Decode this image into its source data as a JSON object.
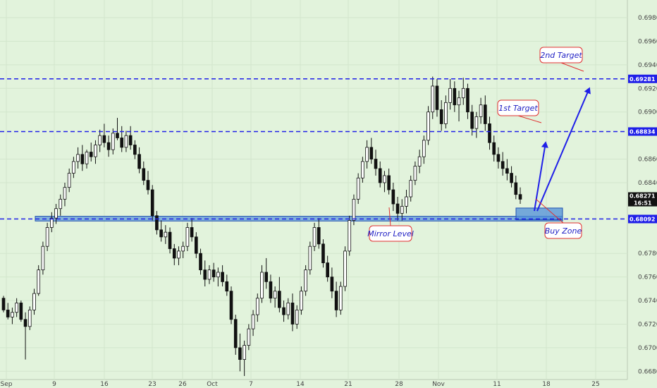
{
  "chart_data": {
    "type": "candlestick",
    "y_axis": {
      "position": "right",
      "ylim": [
        0.6673,
        0.6995
      ],
      "ticks": [
        "0.69800",
        "0.69600",
        "0.69400",
        "0.69200",
        "0.69000",
        "0.68600",
        "0.68400",
        "0.67800",
        "0.67600",
        "0.67400",
        "0.67200",
        "0.67000",
        "0.66800"
      ]
    },
    "x_axis": {
      "ticks": [
        "Sep",
        "9",
        "16",
        "23",
        "26",
        "Oct",
        "7",
        "14",
        "21",
        "28",
        "Nov",
        "11",
        "18",
        "25"
      ]
    },
    "levels": [
      {
        "value": 0.69281,
        "label": "0.69281",
        "color": "#1f1fe8",
        "style": "dashed"
      },
      {
        "value": 0.68834,
        "label": "0.68834",
        "color": "#1f1fe8",
        "style": "dashed"
      },
      {
        "value": 0.68092,
        "label": "0.68092",
        "color": "#1f1fe8",
        "style": "dashed"
      }
    ],
    "last_price": {
      "value": "0.68271",
      "countdown": "16:51"
    },
    "zones": {
      "mirror_level": {
        "y_from": 0.68075,
        "y_to": 0.68115,
        "color": "#4f8fd8"
      },
      "buy_zone": {
        "y_from": 0.68085,
        "y_to": 0.68185,
        "color": "#4f8fd8"
      }
    },
    "annotations": [
      {
        "id": "second-target",
        "text": "2nd Target"
      },
      {
        "id": "first-target",
        "text": "1st Target"
      },
      {
        "id": "mirror-level",
        "text": "Mirror Level"
      },
      {
        "id": "buy-zone",
        "text": "Buy Zone"
      }
    ],
    "candles": [
      [
        0.6742,
        0.6744,
        0.673,
        0.6732
      ],
      [
        0.6732,
        0.6738,
        0.6724,
        0.6726
      ],
      [
        0.6726,
        0.6734,
        0.672,
        0.673
      ],
      [
        0.673,
        0.6742,
        0.6726,
        0.6738
      ],
      [
        0.6738,
        0.674,
        0.6722,
        0.6724
      ],
      [
        0.6724,
        0.673,
        0.669,
        0.6718
      ],
      [
        0.6718,
        0.6735,
        0.6715,
        0.6732
      ],
      [
        0.6732,
        0.675,
        0.6728,
        0.6746
      ],
      [
        0.6746,
        0.677,
        0.6744,
        0.6766
      ],
      [
        0.6766,
        0.679,
        0.6762,
        0.6786
      ],
      [
        0.6786,
        0.6806,
        0.6782,
        0.6802
      ],
      [
        0.6802,
        0.6815,
        0.6798,
        0.681
      ],
      [
        0.681,
        0.6822,
        0.6805,
        0.6818
      ],
      [
        0.6818,
        0.683,
        0.6812,
        0.6826
      ],
      [
        0.6826,
        0.684,
        0.682,
        0.6836
      ],
      [
        0.6836,
        0.6852,
        0.6832,
        0.6848
      ],
      [
        0.6848,
        0.6862,
        0.6844,
        0.6858
      ],
      [
        0.6858,
        0.687,
        0.6852,
        0.6864
      ],
      [
        0.6864,
        0.6872,
        0.685,
        0.6856
      ],
      [
        0.6856,
        0.6868,
        0.6852,
        0.6866
      ],
      [
        0.6866,
        0.6874,
        0.6858,
        0.6862
      ],
      [
        0.6862,
        0.6876,
        0.6856,
        0.6872
      ],
      [
        0.6872,
        0.6885,
        0.6866,
        0.688
      ],
      [
        0.688,
        0.689,
        0.687,
        0.6874
      ],
      [
        0.6874,
        0.688,
        0.6862,
        0.6868
      ],
      [
        0.6868,
        0.6886,
        0.6864,
        0.6882
      ],
      [
        0.6882,
        0.6895,
        0.6876,
        0.6878
      ],
      [
        0.6878,
        0.6888,
        0.6866,
        0.687
      ],
      [
        0.687,
        0.6884,
        0.6866,
        0.688
      ],
      [
        0.688,
        0.6888,
        0.6868,
        0.6872
      ],
      [
        0.6872,
        0.6876,
        0.686,
        0.6864
      ],
      [
        0.6864,
        0.687,
        0.6848,
        0.6852
      ],
      [
        0.6852,
        0.6858,
        0.6838,
        0.6842
      ],
      [
        0.6842,
        0.685,
        0.683,
        0.6834
      ],
      [
        0.6834,
        0.6838,
        0.6808,
        0.6812
      ],
      [
        0.6812,
        0.6816,
        0.6796,
        0.68
      ],
      [
        0.68,
        0.6808,
        0.679,
        0.6794
      ],
      [
        0.6794,
        0.6804,
        0.6788,
        0.6798
      ],
      [
        0.6798,
        0.6802,
        0.678,
        0.6784
      ],
      [
        0.6784,
        0.6788,
        0.677,
        0.6776
      ],
      [
        0.6776,
        0.6786,
        0.677,
        0.6782
      ],
      [
        0.6782,
        0.679,
        0.6776,
        0.6786
      ],
      [
        0.6786,
        0.6806,
        0.6782,
        0.6802
      ],
      [
        0.6802,
        0.681,
        0.679,
        0.6794
      ],
      [
        0.6794,
        0.6798,
        0.6776,
        0.678
      ],
      [
        0.678,
        0.6784,
        0.6762,
        0.6766
      ],
      [
        0.6766,
        0.6774,
        0.6752,
        0.6758
      ],
      [
        0.6758,
        0.677,
        0.6754,
        0.6766
      ],
      [
        0.6766,
        0.6772,
        0.6756,
        0.676
      ],
      [
        0.676,
        0.6768,
        0.6752,
        0.6764
      ],
      [
        0.6764,
        0.677,
        0.6752,
        0.6756
      ],
      [
        0.6756,
        0.6762,
        0.6744,
        0.6748
      ],
      [
        0.6748,
        0.6752,
        0.672,
        0.6724
      ],
      [
        0.6724,
        0.6728,
        0.6694,
        0.67
      ],
      [
        0.67,
        0.6712,
        0.668,
        0.669
      ],
      [
        0.669,
        0.6706,
        0.6676,
        0.6702
      ],
      [
        0.6702,
        0.672,
        0.6698,
        0.6716
      ],
      [
        0.6716,
        0.6732,
        0.671,
        0.6728
      ],
      [
        0.6728,
        0.6746,
        0.6722,
        0.6742
      ],
      [
        0.6742,
        0.677,
        0.6738,
        0.6764
      ],
      [
        0.6764,
        0.6776,
        0.675,
        0.6756
      ],
      [
        0.6756,
        0.6762,
        0.6738,
        0.6742
      ],
      [
        0.6742,
        0.6752,
        0.6734,
        0.6748
      ],
      [
        0.6748,
        0.676,
        0.673,
        0.6734
      ],
      [
        0.6734,
        0.674,
        0.6722,
        0.6728
      ],
      [
        0.6728,
        0.6742,
        0.6724,
        0.6738
      ],
      [
        0.6738,
        0.6746,
        0.6714,
        0.672
      ],
      [
        0.672,
        0.6736,
        0.6716,
        0.6732
      ],
      [
        0.6732,
        0.6752,
        0.6728,
        0.6748
      ],
      [
        0.6748,
        0.677,
        0.6744,
        0.6766
      ],
      [
        0.6766,
        0.679,
        0.6762,
        0.6786
      ],
      [
        0.6786,
        0.6806,
        0.6782,
        0.6802
      ],
      [
        0.6802,
        0.681,
        0.6784,
        0.6788
      ],
      [
        0.6788,
        0.6792,
        0.6768,
        0.6772
      ],
      [
        0.6772,
        0.6778,
        0.6756,
        0.676
      ],
      [
        0.676,
        0.6768,
        0.6742,
        0.6748
      ],
      [
        0.6748,
        0.6756,
        0.6726,
        0.6732
      ],
      [
        0.6732,
        0.6756,
        0.6728,
        0.6752
      ],
      [
        0.6752,
        0.6786,
        0.6748,
        0.6782
      ],
      [
        0.6782,
        0.6812,
        0.6778,
        0.6808
      ],
      [
        0.6808,
        0.683,
        0.6804,
        0.6826
      ],
      [
        0.6826,
        0.6848,
        0.6822,
        0.6844
      ],
      [
        0.6844,
        0.6862,
        0.684,
        0.6858
      ],
      [
        0.6858,
        0.6876,
        0.6852,
        0.687
      ],
      [
        0.687,
        0.6878,
        0.6856,
        0.686
      ],
      [
        0.686,
        0.6868,
        0.6846,
        0.6852
      ],
      [
        0.6852,
        0.6858,
        0.6836,
        0.684
      ],
      [
        0.684,
        0.685,
        0.6832,
        0.6846
      ],
      [
        0.6846,
        0.6852,
        0.683,
        0.6834
      ],
      [
        0.6834,
        0.684,
        0.6816,
        0.6822
      ],
      [
        0.6822,
        0.6828,
        0.6808,
        0.6814
      ],
      [
        0.6814,
        0.6826,
        0.6808,
        0.682
      ],
      [
        0.682,
        0.6834,
        0.6814,
        0.6828
      ],
      [
        0.6828,
        0.6846,
        0.6824,
        0.6842
      ],
      [
        0.6842,
        0.6858,
        0.6838,
        0.6854
      ],
      [
        0.6854,
        0.6868,
        0.6848,
        0.6862
      ],
      [
        0.6862,
        0.688,
        0.6856,
        0.6876
      ],
      [
        0.6876,
        0.6905,
        0.6872,
        0.69
      ],
      [
        0.69,
        0.693,
        0.6894,
        0.6922
      ],
      [
        0.6922,
        0.6928,
        0.6896,
        0.6902
      ],
      [
        0.6902,
        0.691,
        0.6884,
        0.689
      ],
      [
        0.689,
        0.6914,
        0.6886,
        0.6908
      ],
      [
        0.6908,
        0.6928,
        0.6902,
        0.692
      ],
      [
        0.692,
        0.6926,
        0.69,
        0.6906
      ],
      [
        0.6906,
        0.6918,
        0.6892,
        0.6912
      ],
      [
        0.6912,
        0.6929,
        0.6906,
        0.692
      ],
      [
        0.692,
        0.6924,
        0.6894,
        0.69
      ],
      [
        0.69,
        0.6906,
        0.688,
        0.6886
      ],
      [
        0.6886,
        0.69,
        0.6878,
        0.6896
      ],
      [
        0.6896,
        0.6912,
        0.689,
        0.6906
      ],
      [
        0.6906,
        0.6914,
        0.6884,
        0.689
      ],
      [
        0.689,
        0.6896,
        0.6868,
        0.6874
      ],
      [
        0.6874,
        0.688,
        0.6858,
        0.6864
      ],
      [
        0.6864,
        0.687,
        0.6852,
        0.6858
      ],
      [
        0.6858,
        0.6866,
        0.6846,
        0.6852
      ],
      [
        0.6852,
        0.686,
        0.6842,
        0.6848
      ],
      [
        0.6848,
        0.6854,
        0.6836,
        0.684
      ],
      [
        0.684,
        0.6846,
        0.6826,
        0.683
      ],
      [
        0.683,
        0.6836,
        0.6822,
        0.6826
      ]
    ]
  }
}
